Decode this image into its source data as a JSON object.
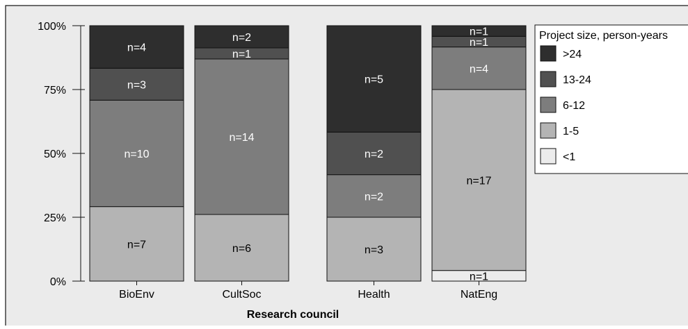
{
  "chart_data": {
    "type": "bar",
    "stacked": true,
    "normalized": true,
    "title": "",
    "xlabel": "Research council",
    "ylabel": "",
    "ylim": [
      0,
      100
    ],
    "yticks": [
      "0%",
      "25%",
      "50%",
      "75%",
      "100%"
    ],
    "ytick_values": [
      0,
      25,
      50,
      75,
      100
    ],
    "categories": [
      "BioEnv",
      "CultSoc",
      "Health",
      "NatEng"
    ],
    "legend": {
      "title": "Project size, person-years",
      "placement": "right"
    },
    "series": [
      {
        "name": "<1",
        "color": "#ececec",
        "label_color": "#000000",
        "values": [
          0,
          0,
          0,
          1
        ],
        "labels": [
          "",
          "",
          "",
          "n=1"
        ]
      },
      {
        "name": "1-5",
        "color": "#b4b4b4",
        "label_color": "#000000",
        "values": [
          7,
          6,
          3,
          17
        ],
        "labels": [
          "n=7",
          "n=6",
          "n=3",
          "n=17"
        ]
      },
      {
        "name": "6-12",
        "color": "#7d7d7d",
        "label_color": "#ffffff",
        "values": [
          10,
          14,
          2,
          4
        ],
        "labels": [
          "n=10",
          "n=14",
          "n=2",
          "n=4"
        ]
      },
      {
        "name": "13-24",
        "color": "#505050",
        "label_color": "#ffffff",
        "values": [
          3,
          1,
          2,
          1
        ],
        "labels": [
          "n=3",
          "n=1",
          "n=2",
          "n=1"
        ]
      },
      {
        "name": ">24",
        "color": "#2e2e2e",
        "label_color": "#ffffff",
        "values": [
          4,
          2,
          5,
          1
        ],
        "labels": [
          "n=4",
          "n=2",
          "n=5",
          "n=1"
        ]
      }
    ],
    "background_color": "#ebebeb",
    "grid": false
  }
}
